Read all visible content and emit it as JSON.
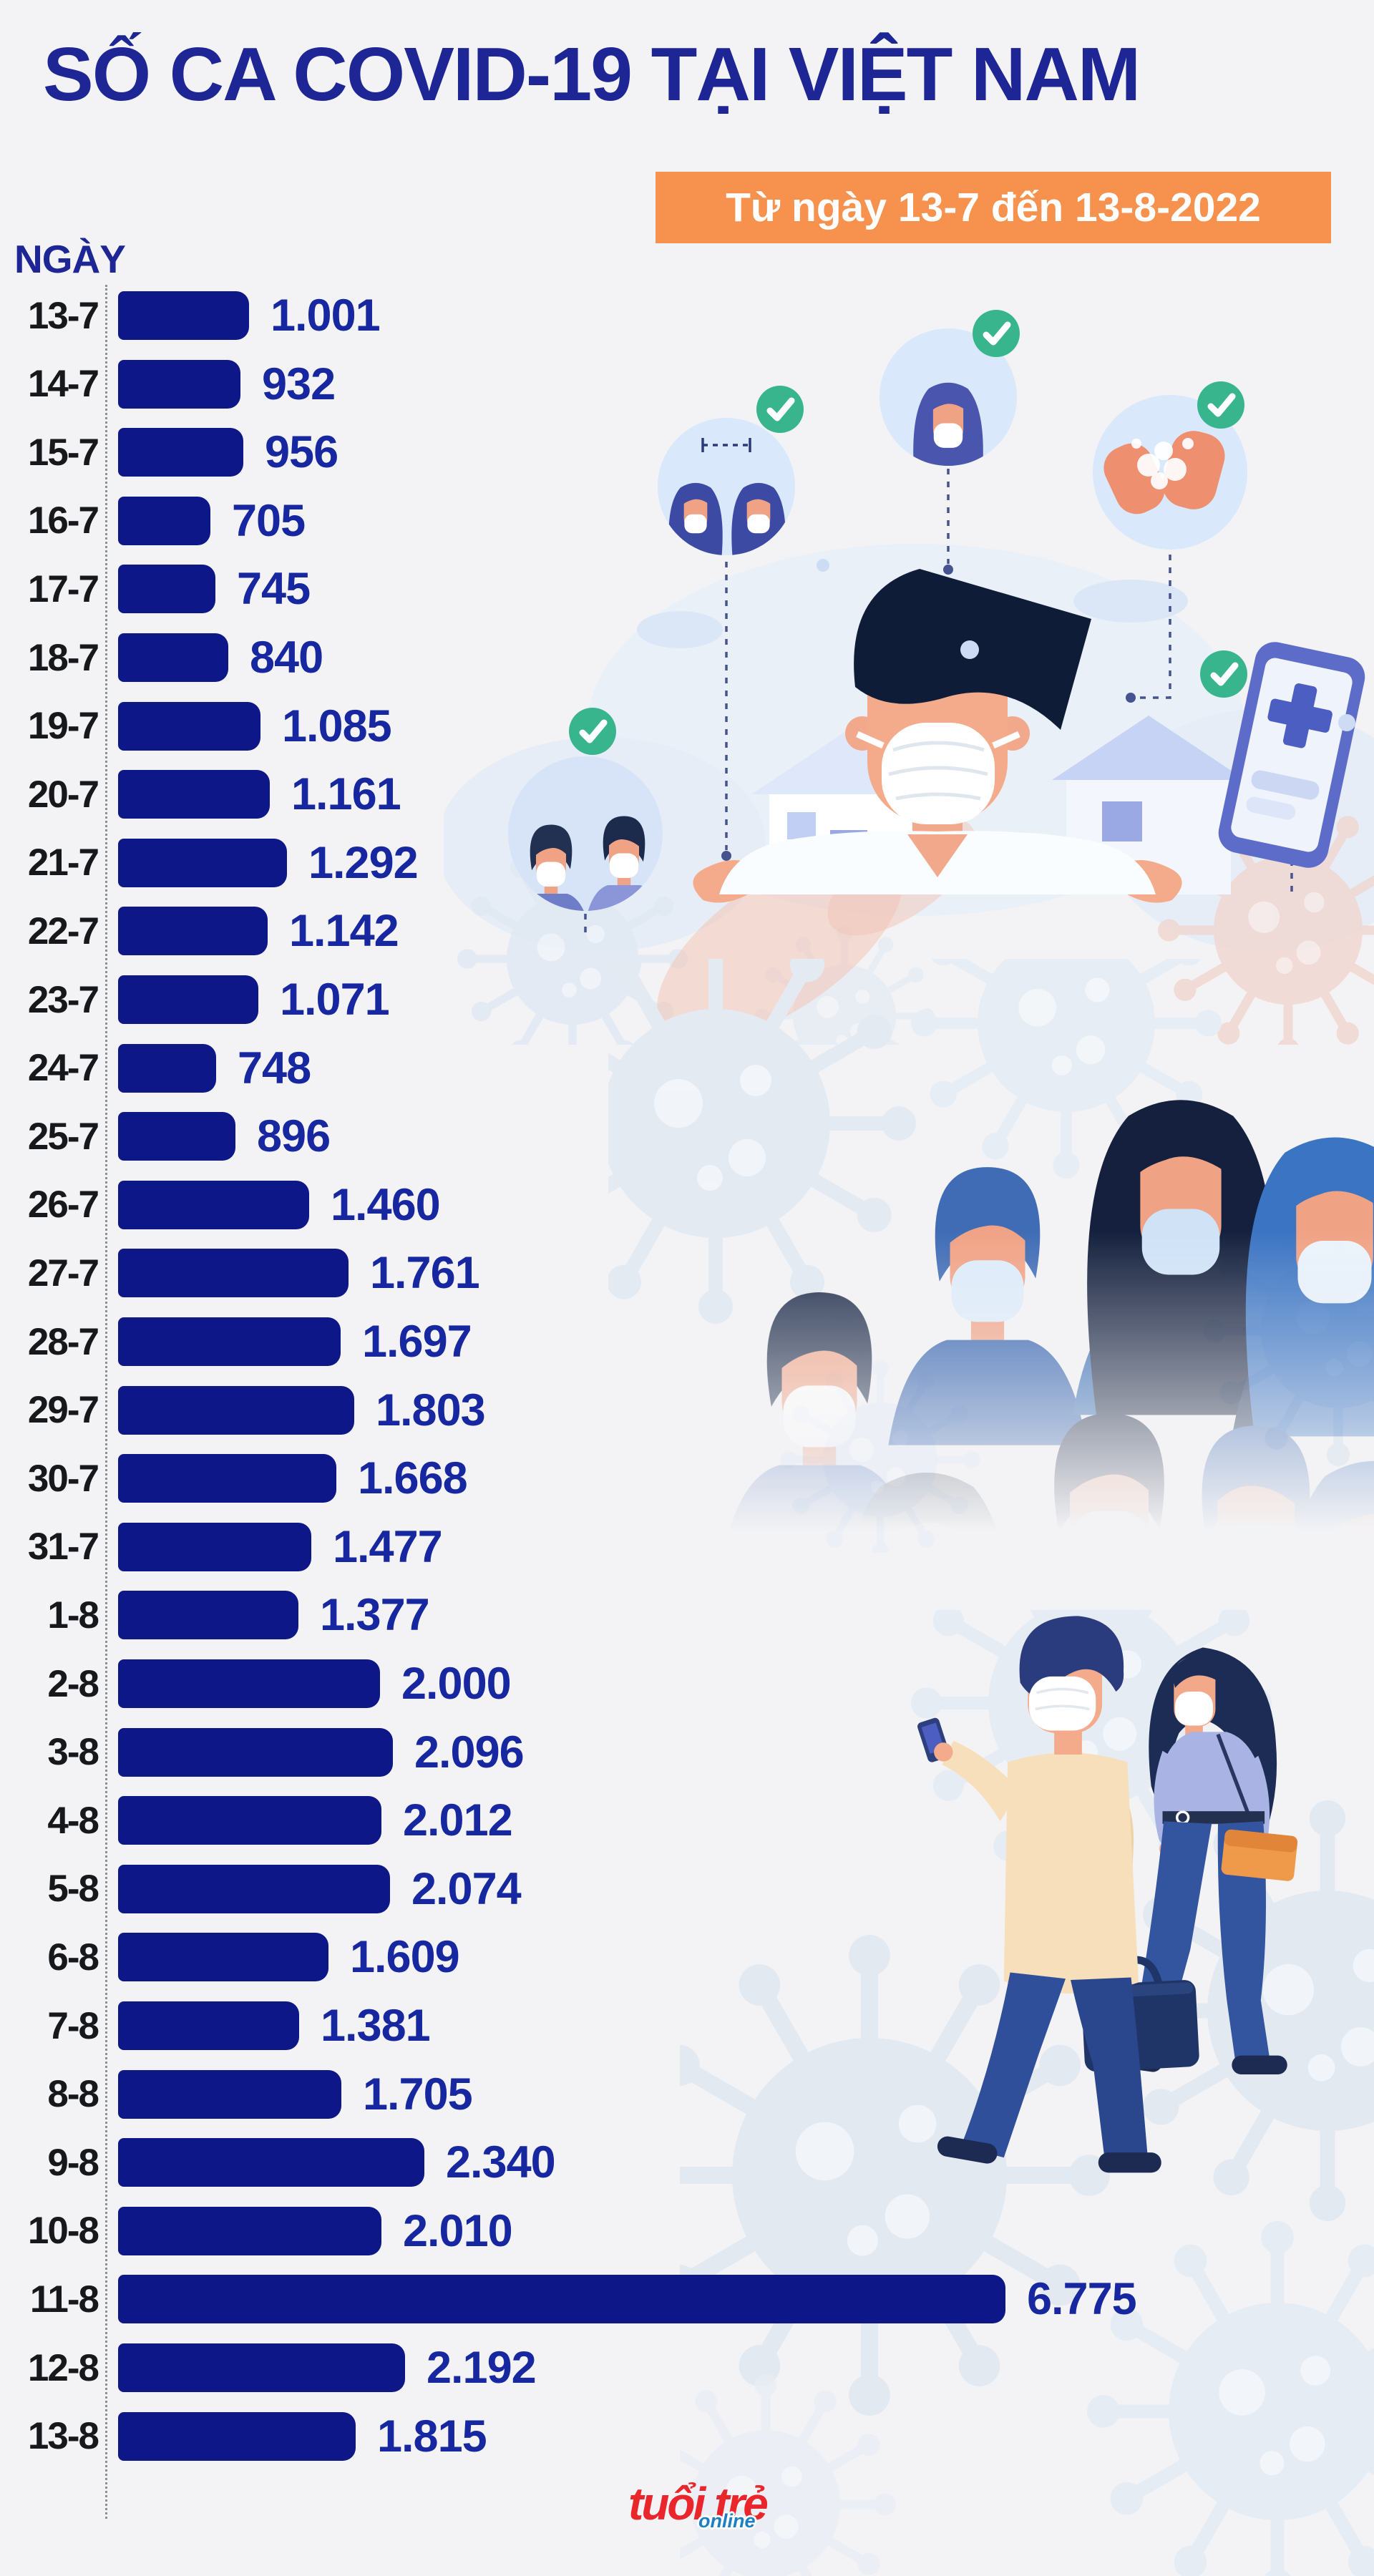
{
  "header": {
    "title": "SỐ CA COVID-19 TẠI VIỆT NAM",
    "subtitle": "Từ ngày 13-7 đến 13-8-2022"
  },
  "chart_data": {
    "type": "bar",
    "orientation": "horizontal",
    "title": "SỐ CA COVID-19 TẠI VIỆT NAM",
    "subtitle": "Từ ngày 13-7 đến 13-8-2022",
    "xlabel": "",
    "ylabel": "NGÀY",
    "xlim": [
      0,
      6775
    ],
    "grid": false,
    "legend": false,
    "categories": [
      "13-7",
      "14-7",
      "15-7",
      "16-7",
      "17-7",
      "18-7",
      "19-7",
      "20-7",
      "21-7",
      "22-7",
      "23-7",
      "24-7",
      "25-7",
      "26-7",
      "27-7",
      "28-7",
      "29-7",
      "30-7",
      "31-7",
      "1-8",
      "2-8",
      "3-8",
      "4-8",
      "5-8",
      "6-8",
      "7-8",
      "8-8",
      "9-8",
      "10-8",
      "11-8",
      "12-8",
      "13-8"
    ],
    "values": [
      1001,
      932,
      956,
      705,
      745,
      840,
      1085,
      1161,
      1292,
      1142,
      1071,
      748,
      896,
      1460,
      1761,
      1697,
      1803,
      1668,
      1477,
      1377,
      2000,
      2096,
      2012,
      2074,
      1609,
      1381,
      1705,
      2340,
      2010,
      6775,
      2192,
      1815
    ],
    "value_labels": [
      "1.001",
      "932",
      "956",
      "705",
      "745",
      "840",
      "1.085",
      "1.161",
      "1.292",
      "1.142",
      "1.071",
      "748",
      "896",
      "1.460",
      "1.761",
      "1.697",
      "1.803",
      "1.668",
      "1.477",
      "1.377",
      "2.000",
      "2.096",
      "2.012",
      "2.074",
      "1.609",
      "1.381",
      "1.705",
      "2.340",
      "2.010",
      "6.775",
      "2.192",
      "1.815"
    ],
    "bar_color": "#0d1788",
    "value_label_color": "#1727a0",
    "category_label_color": "#17181c"
  },
  "footer": {
    "logo_primary": "tuổi trẻ",
    "logo_secondary": "online"
  },
  "colors": {
    "background": "#f3f3f5",
    "title": "#1d2694",
    "badge_background": "#f6914e",
    "badge_text": "#ffffff",
    "checkmark_green": "#38b58d",
    "logo_red": "#e8262c",
    "logo_blue": "#1e7fc2",
    "virus_motif": "#e4eaf2"
  },
  "illustrations": {
    "top": "doctor-with-mask-prevention-measures",
    "middle": "crowd-wearing-masks",
    "bottom": "masked-couple-walking",
    "motifs": [
      "coronavirus-particle",
      "green-checkmark",
      "washing-hands",
      "social-distancing",
      "smartphone-medical-app",
      "houses",
      "clouds"
    ]
  }
}
